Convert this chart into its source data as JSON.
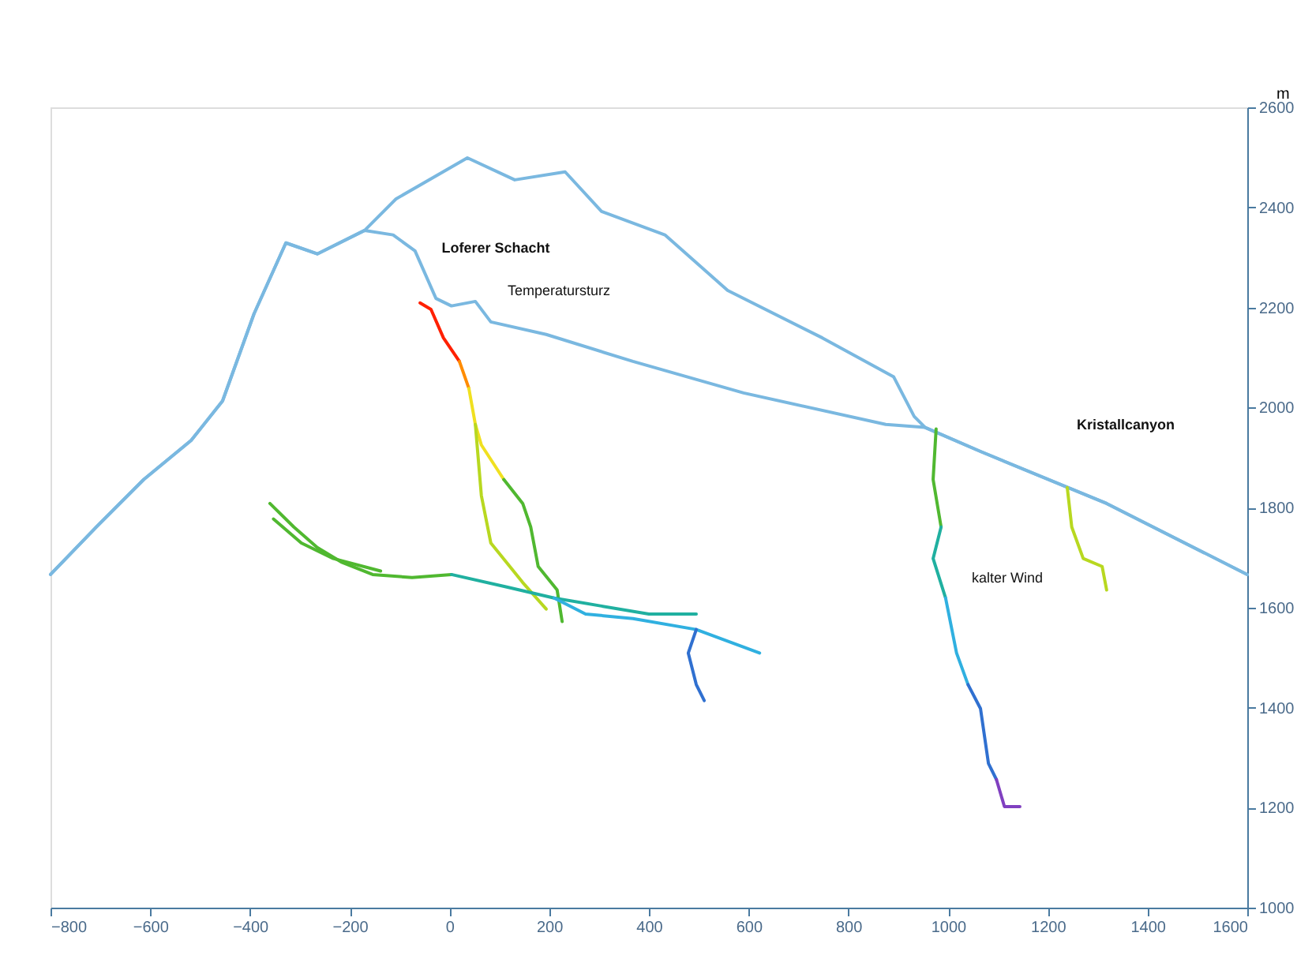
{
  "chart_data": {
    "type": "line",
    "ylabel": "m",
    "xlim": [
      -800,
      1600
    ],
    "ylim": [
      1000,
      2600
    ],
    "xticks": [
      -800,
      -600,
      -400,
      -200,
      0,
      200,
      400,
      600,
      800,
      1000,
      1200,
      1400,
      1600
    ],
    "yticks": [
      1000,
      1200,
      1400,
      1600,
      1800,
      2000,
      2200,
      2400,
      2600
    ],
    "grid": false,
    "legend": false,
    "line_style": "solid",
    "marker": "none",
    "annotations": [
      "Loferer Schacht",
      "Temperatursturz",
      "Kristallcanyon",
      "kalter Wind"
    ],
    "series": [
      {
        "color": "#7ab8e0",
        "x": [
          -800,
          -708,
          -613,
          -518,
          -455,
          -392,
          -328,
          -265,
          -170,
          -107,
          36,
          131,
          232,
          305,
          432,
          558,
          748,
          891,
          932,
          954,
          1065,
          1318,
          1600
        ],
        "values": [
          1666,
          1761,
          1856,
          1934,
          2013,
          2187,
          2329,
          2307,
          2354,
          2417,
          2499,
          2455,
          2471,
          2392,
          2345,
          2234,
          2139,
          2061,
          1982,
          1960,
          1912,
          1808,
          1666
        ]
      },
      {
        "color": "#7ab8e0",
        "x": [
          -800,
          -708,
          -613,
          -518,
          -455,
          -392,
          -328,
          -265,
          -170,
          -113,
          -69,
          -27,
          4,
          52,
          83,
          194,
          368,
          590,
          875,
          954,
          1065,
          1318,
          1600
        ],
        "values": [
          1666,
          1761,
          1856,
          1934,
          2013,
          2187,
          2329,
          2307,
          2354,
          2345,
          2313,
          2218,
          2203,
          2212,
          2171,
          2146,
          2092,
          2029,
          1966,
          1960,
          1912,
          1808,
          1666
        ]
      },
      {
        "color": "#ff2000",
        "x": [
          -59,
          -37,
          -12,
          20
        ],
        "values": [
          2209,
          2196,
          2139,
          2092
        ]
      },
      {
        "color": "#ff8c00",
        "x": [
          20,
          39
        ],
        "values": [
          2092,
          2038
        ]
      },
      {
        "color": "#f0e020",
        "x": [
          39,
          52,
          64,
          109
        ],
        "values": [
          2038,
          1966,
          1925,
          1856
        ]
      },
      {
        "color": "#b8d820",
        "x": [
          52,
          64,
          83,
          147,
          194
        ],
        "values": [
          1966,
          1824,
          1729,
          1650,
          1597
        ]
      },
      {
        "color": "#50b830",
        "x": [
          109,
          147,
          163,
          178,
          216,
          226
        ],
        "values": [
          1856,
          1808,
          1761,
          1682,
          1635,
          1572
        ]
      },
      {
        "color": "#50b830",
        "x": [
          -360,
          -312,
          -265,
          -217,
          -154,
          -75,
          4
        ],
        "values": [
          1808,
          1761,
          1720,
          1691,
          1666,
          1660,
          1666
        ]
      },
      {
        "color": "#50b830",
        "x": [
          -353,
          -297,
          -233,
          -138
        ],
        "values": [
          1777,
          1729,
          1698,
          1673
        ]
      },
      {
        "color": "#20b0a0",
        "x": [
          4,
          115,
          210,
          305,
          400,
          495
        ],
        "values": [
          1666,
          1641,
          1619,
          1603,
          1587,
          1587
        ]
      },
      {
        "color": "#30b0e0",
        "x": [
          210,
          273,
          368,
          495,
          622
        ],
        "values": [
          1619,
          1587,
          1578,
          1556,
          1509
        ]
      },
      {
        "color": "#3070d0",
        "x": [
          495,
          479,
          495,
          511
        ],
        "values": [
          1556,
          1509,
          1446,
          1414
        ]
      },
      {
        "color": "#50b830",
        "x": [
          976,
          970,
          986
        ],
        "values": [
          1957,
          1856,
          1761
        ]
      },
      {
        "color": "#20b0a0",
        "x": [
          986,
          970,
          995
        ],
        "values": [
          1761,
          1698,
          1619
        ]
      },
      {
        "color": "#30b0e0",
        "x": [
          995,
          1017,
          1040
        ],
        "values": [
          1619,
          1509,
          1446
        ]
      },
      {
        "color": "#3070d0",
        "x": [
          1040,
          1065,
          1081,
          1097
        ],
        "values": [
          1446,
          1398,
          1288,
          1256
        ]
      },
      {
        "color": "#8040c0",
        "x": [
          1097,
          1113,
          1144
        ],
        "values": [
          1256,
          1202,
          1202
        ]
      },
      {
        "color": "#b8d820",
        "x": [
          1239,
          1248,
          1271,
          1309,
          1318
        ],
        "values": [
          1840,
          1761,
          1698,
          1682,
          1635
        ]
      }
    ]
  }
}
